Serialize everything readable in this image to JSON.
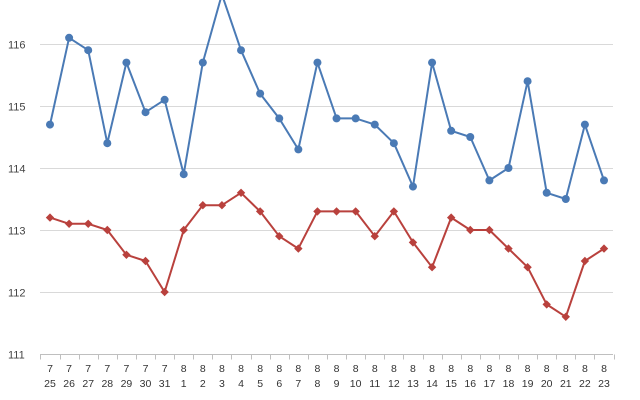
{
  "chart_data": {
    "type": "line",
    "categories": [
      [
        "7",
        "25"
      ],
      [
        "7",
        "26"
      ],
      [
        "7",
        "27"
      ],
      [
        "7",
        "28"
      ],
      [
        "7",
        "29"
      ],
      [
        "7",
        "30"
      ],
      [
        "7",
        "31"
      ],
      [
        "8",
        "1"
      ],
      [
        "8",
        "2"
      ],
      [
        "8",
        "3"
      ],
      [
        "8",
        "4"
      ],
      [
        "8",
        "5"
      ],
      [
        "8",
        "6"
      ],
      [
        "8",
        "7"
      ],
      [
        "8",
        "8"
      ],
      [
        "8",
        "9"
      ],
      [
        "8",
        "10"
      ],
      [
        "8",
        "11"
      ],
      [
        "8",
        "12"
      ],
      [
        "8",
        "13"
      ],
      [
        "8",
        "14"
      ],
      [
        "8",
        "15"
      ],
      [
        "8",
        "16"
      ],
      [
        "8",
        "17"
      ],
      [
        "8",
        "18"
      ],
      [
        "8",
        "19"
      ],
      [
        "8",
        "20"
      ],
      [
        "8",
        "21"
      ],
      [
        "8",
        "22"
      ],
      [
        "8",
        "23"
      ]
    ],
    "series": [
      {
        "color": "#4a7ab5",
        "marker": "circle",
        "values": [
          114.7,
          116.1,
          115.9,
          114.4,
          115.7,
          114.9,
          115.1,
          113.9,
          115.7,
          116.8,
          115.9,
          115.2,
          114.8,
          114.3,
          115.7,
          114.8,
          114.8,
          114.7,
          114.4,
          113.7,
          115.7,
          114.6,
          114.5,
          113.8,
          114.0,
          115.4,
          113.6,
          113.5,
          114.7,
          113.8
        ]
      },
      {
        "color": "#b9413d",
        "marker": "diamond",
        "values": [
          113.2,
          113.1,
          113.1,
          113.0,
          112.6,
          112.5,
          112.0,
          113.0,
          113.4,
          113.4,
          113.6,
          113.3,
          112.9,
          112.7,
          113.3,
          113.3,
          113.3,
          112.9,
          113.3,
          112.8,
          112.4,
          113.2,
          113.0,
          113.0,
          112.7,
          112.4,
          111.8,
          111.6,
          112.5,
          112.7
        ]
      }
    ],
    "y_ticks": [
      "111",
      "112",
      "113",
      "114",
      "115",
      "116"
    ],
    "ylim": [
      111,
      116.9
    ],
    "grid": "horizontal",
    "legend": "none"
  }
}
